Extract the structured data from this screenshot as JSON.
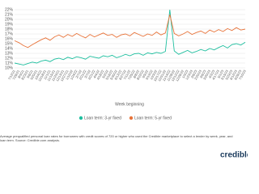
{
  "chart_data": {
    "type": "line",
    "x_label": "Week beginning",
    "caption": "Average prequalified personal loan rates for borrowers with credit scores of 720 or higher who used the Credible marketplace to select a lender by week, year, and loan term. Source: Credible.com analysis.",
    "logo": "credible",
    "categories": [
      "7/12/21",
      "7/26/21",
      "8/9/21",
      "8/23/21",
      "9/6/21",
      "9/20/21",
      "10/4/21",
      "10/18/21",
      "11/1/21",
      "11/15/21",
      "11/29/21",
      "12/13/21",
      "12/27/21",
      "1/10/22",
      "1/24/22",
      "2/7/22",
      "2/21/22",
      "3/7/22",
      "3/21/22",
      "4/4/22",
      "4/18/22",
      "5/2/22",
      "5/16/22",
      "5/30/22",
      "6/13/22",
      "6/27/22",
      "7/11/22",
      "7/25/22",
      "8/8/22",
      "8/22/22",
      "9/5/22",
      "9/19/22",
      "10/3/22",
      "10/17/22",
      "10/31/22",
      "11/14/22",
      "11/28/22",
      "12/12/22",
      "12/26/22",
      "1/9/23",
      "1/23/23",
      "2/6/23",
      "2/20/23",
      "3/6/23",
      "3/20/23",
      "4/3/23",
      "4/17/23",
      "5/1/23",
      "5/15/23",
      "5/29/23",
      "6/12/23",
      "6/26/23",
      "7/10/23"
    ],
    "series": [
      {
        "name": "Loan term: 3-yr fixed",
        "color": "#1fbf9f",
        "values": [
          11.0,
          10.8,
          10.6,
          10.9,
          11.2,
          11.0,
          11.4,
          11.6,
          11.3,
          11.8,
          12.0,
          11.7,
          12.2,
          11.9,
          12.3,
          12.1,
          11.8,
          12.4,
          12.2,
          12.0,
          12.5,
          12.3,
          12.6,
          12.1,
          12.4,
          12.8,
          12.5,
          12.9,
          13.0,
          12.6,
          13.1,
          12.9,
          13.2,
          13.0,
          13.4,
          22.0,
          13.5,
          12.8,
          13.2,
          13.6,
          13.1,
          13.4,
          13.8,
          13.5,
          14.0,
          13.7,
          14.2,
          14.6,
          14.1,
          14.8,
          15.0,
          14.7,
          15.3
        ]
      },
      {
        "name": "Loan term: 5-yr fixed",
        "color": "#e8743b",
        "values": [
          15.6,
          15.2,
          14.6,
          14.2,
          14.8,
          15.3,
          15.8,
          16.2,
          15.7,
          16.4,
          16.8,
          16.3,
          16.9,
          16.5,
          17.1,
          16.6,
          16.2,
          16.9,
          16.4,
          16.8,
          17.2,
          16.7,
          16.9,
          16.3,
          16.8,
          17.0,
          16.6,
          17.3,
          16.9,
          16.5,
          17.0,
          16.7,
          17.4,
          16.8,
          17.2,
          21.0,
          17.1,
          16.6,
          17.0,
          17.5,
          16.9,
          17.3,
          17.6,
          17.1,
          17.8,
          17.4,
          17.9,
          17.5,
          18.1,
          17.7,
          18.3,
          17.8,
          18.0
        ]
      }
    ],
    "ylim": [
      10,
      22
    ],
    "yticks": [
      {
        "value": 10,
        "label": "10%"
      },
      {
        "value": 11,
        "label": "11%"
      },
      {
        "value": 12,
        "label": "12%"
      },
      {
        "value": 13,
        "label": "13%"
      },
      {
        "value": 14,
        "label": "14%"
      },
      {
        "value": 15,
        "label": "15%"
      },
      {
        "value": 16,
        "label": "16%"
      },
      {
        "value": 17,
        "label": "17%"
      },
      {
        "value": 18,
        "label": "18%"
      },
      {
        "value": 19,
        "label": "19%"
      },
      {
        "value": 20,
        "label": "20%"
      },
      {
        "value": 21,
        "label": "21%"
      },
      {
        "value": 22,
        "label": "22%"
      }
    ],
    "grid": true
  }
}
